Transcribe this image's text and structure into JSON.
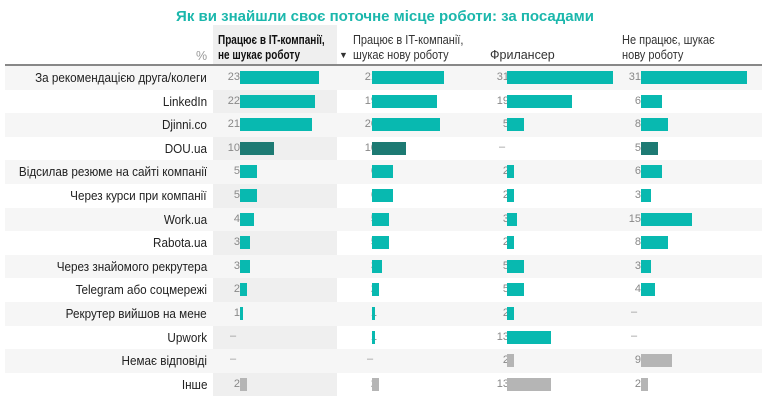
{
  "chart_data": {
    "type": "table",
    "title": "Як ви знайшли своє поточне місце роботи: за посадами",
    "unit_label": "%",
    "sorted_column": 0,
    "columns": [
      "Працює в IT-компанії, не шукає роботу",
      "Працює в IT-компанії, шукає нову роботу",
      "Фрилансер",
      "Не працює, шукає нову роботу"
    ],
    "colors": {
      "default": "#08b9b0",
      "highlight": "#1d7a73",
      "other": "#b5b5b5"
    },
    "rows": [
      {
        "label": "За рекомендацією друга/колеги",
        "values": [
          23,
          21,
          31,
          31
        ],
        "color": "default"
      },
      {
        "label": "LinkedIn",
        "values": [
          22,
          19,
          19,
          6
        ],
        "color": "default"
      },
      {
        "label": "Djinni.co",
        "values": [
          21,
          20,
          5,
          8
        ],
        "color": "default"
      },
      {
        "label": "DOU.ua",
        "values": [
          10,
          10,
          null,
          5
        ],
        "color": "highlight"
      },
      {
        "label": "Відсилав резюме на сайті компанії",
        "values": [
          5,
          6,
          2,
          6
        ],
        "color": "default"
      },
      {
        "label": "Через курси при компанії",
        "values": [
          5,
          6,
          2,
          3
        ],
        "color": "default"
      },
      {
        "label": "Work.ua",
        "values": [
          4,
          5,
          3,
          15
        ],
        "color": "default"
      },
      {
        "label": "Rabota.ua",
        "values": [
          3,
          5,
          2,
          8
        ],
        "color": "default"
      },
      {
        "label": "Через знайомого рекрутера",
        "values": [
          3,
          3,
          5,
          3
        ],
        "color": "default"
      },
      {
        "label": "Telegram або соцмережі",
        "values": [
          2,
          2,
          5,
          4
        ],
        "color": "default"
      },
      {
        "label": "Рекрутер вийшов на мене",
        "values": [
          1,
          1,
          2,
          null
        ],
        "color": "default"
      },
      {
        "label": "Upwork",
        "values": [
          null,
          1,
          13,
          null
        ],
        "color": "default"
      },
      {
        "label": "Немає відповіді",
        "values": [
          null,
          null,
          2,
          9
        ],
        "color": "other"
      },
      {
        "label": "Інше",
        "values": [
          2,
          2,
          13,
          2
        ],
        "color": "other"
      }
    ]
  }
}
